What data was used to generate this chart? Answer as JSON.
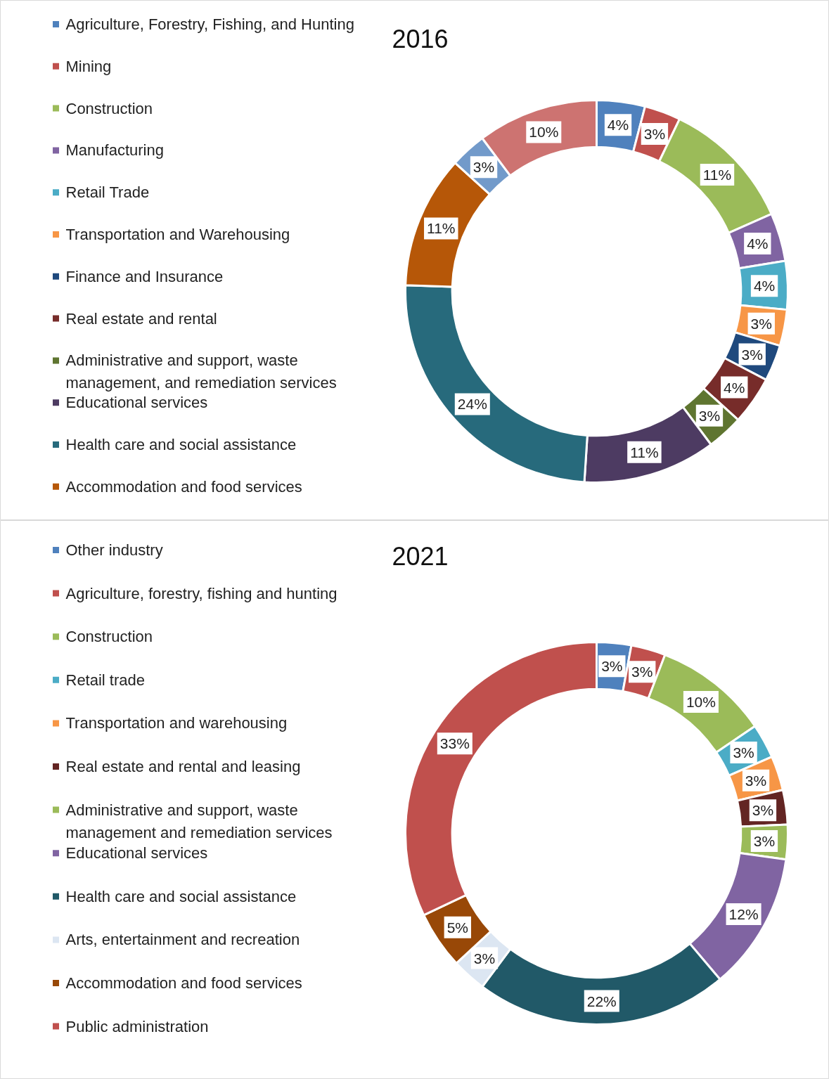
{
  "chart_data": [
    {
      "type": "donut",
      "title": "2016",
      "legend": "left",
      "categories": [
        "Agriculture, Forestry, Fishing, and Hunting",
        "Mining",
        "Construction",
        "Manufacturing",
        "Retail Trade",
        "Transportation and Warehousing",
        "Finance and Insurance",
        "Real estate and rental",
        "Administrative and support, waste management, and remediation services",
        "Educational services",
        "Health care and social assistance",
        "Accommodation and food services",
        null,
        null
      ],
      "values": [
        4,
        3,
        11,
        4,
        4,
        3,
        3,
        4,
        3,
        11,
        24,
        11,
        3,
        10
      ],
      "value_labels": [
        "4%",
        "3%",
        "11%",
        "4%",
        "4%",
        "3%",
        "3%",
        "4%",
        "3%",
        "11%",
        "24%",
        "11%",
        "3%",
        "10%"
      ],
      "colors": [
        "#4f81bd",
        "#c0504d",
        "#9bbb59",
        "#8064a2",
        "#4bacc6",
        "#f79646",
        "#1f497d",
        "#772c2a",
        "#5f7530",
        "#4d3b62",
        "#276a7c",
        "#b65708",
        "#729aca",
        "#cd7371"
      ]
    },
    {
      "type": "donut",
      "title": "2021",
      "legend": "left",
      "categories": [
        "Other industry",
        "Agriculture, forestry, fishing and hunting",
        "Construction",
        "Retail trade",
        "Transportation and warehousing",
        "Real estate and rental and leasing",
        "Administrative and support, waste management and remediation services",
        "Educational services",
        "Health care and social assistance",
        "Arts, entertainment and recreation",
        "Accommodation and food services",
        "Public administration"
      ],
      "values": [
        3,
        3,
        10,
        3,
        3,
        3,
        3,
        12,
        22,
        3,
        5,
        33
      ],
      "value_labels": [
        "3%",
        "3%",
        "10%",
        "3%",
        "3%",
        "3%",
        "3%",
        "12%",
        "22%",
        "3%",
        "5%",
        "33%"
      ],
      "colors": [
        "#4f81bd",
        "#c0504d",
        "#9bbb59",
        "#4bacc6",
        "#f79646",
        "#632523",
        "#9bbb59",
        "#8064a2",
        "#215968",
        "#dce6f2",
        "#984807",
        "#c0504d"
      ]
    }
  ]
}
